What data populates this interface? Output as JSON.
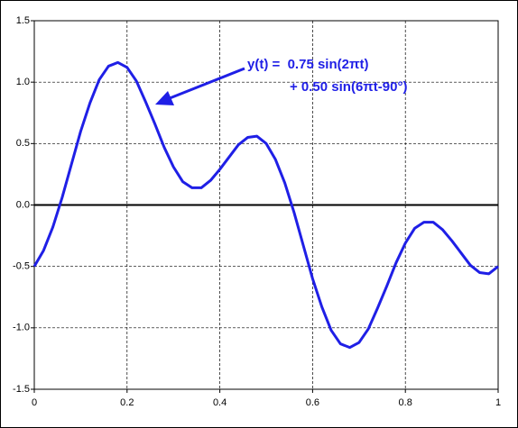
{
  "chart_data": {
    "type": "line",
    "annotation": [
      "y(t) =  0.75 sin(2πt)",
      "+ 0.50 sin(6πt-90°)"
    ],
    "x": [
      0,
      0.02,
      0.04,
      0.06,
      0.08,
      0.1,
      0.12,
      0.14,
      0.16,
      0.18,
      0.2,
      0.22,
      0.24,
      0.26,
      0.28,
      0.3,
      0.32,
      0.34,
      0.36,
      0.38,
      0.4,
      0.42,
      0.44,
      0.46,
      0.48,
      0.5,
      0.52,
      0.54,
      0.56,
      0.58,
      0.6,
      0.62,
      0.64,
      0.66,
      0.68,
      0.7,
      0.72,
      0.74,
      0.76,
      0.78,
      0.8,
      0.82,
      0.84,
      0.86,
      0.88,
      0.9,
      0.92,
      0.94,
      0.96,
      0.98,
      1
    ],
    "values": [
      -0.5,
      -0.37,
      -0.18,
      0.06,
      0.33,
      0.6,
      0.83,
      1.02,
      1.13,
      1.16,
      1.12,
      1.01,
      0.84,
      0.66,
      0.47,
      0.31,
      0.19,
      0.14,
      0.14,
      0.2,
      0.29,
      0.39,
      0.49,
      0.55,
      0.56,
      0.5,
      0.37,
      0.18,
      -0.06,
      -0.33,
      -0.6,
      -0.83,
      -1.02,
      -1.13,
      -1.16,
      -1.12,
      -1.01,
      -0.84,
      -0.66,
      -0.47,
      -0.31,
      -0.19,
      -0.14,
      -0.14,
      -0.2,
      -0.29,
      -0.39,
      -0.49,
      -0.55,
      -0.56,
      -0.5
    ],
    "color": "#1f1fe6",
    "xlim": [
      0,
      1
    ],
    "xticks": [
      0,
      0.2,
      0.4,
      0.6,
      0.8,
      1
    ],
    "ylim": [
      -1.5,
      1.5
    ],
    "yticks": [
      -1.5,
      -0.5,
      {
        "value": -1,
        "label": "-1.0"
      },
      {
        "value": 0,
        "label": "0.0"
      },
      0.5,
      {
        "value": 1,
        "label": "1.0"
      },
      1.5
    ],
    "grid": true
  }
}
